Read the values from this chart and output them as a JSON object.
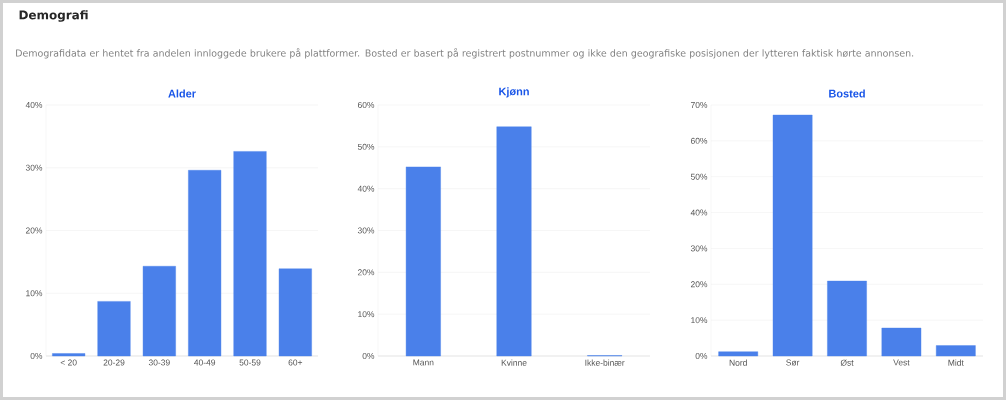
{
  "chart_data": [
    {
      "type": "bar",
      "title": "Alder",
      "annotations": [
        "Demografi",
        "Demografidata er hentet fra andelen innloggede brukere på plattformer. Bosted er basert på registrert postnummer og ikke den geografiske posisjonen der lytteren faktisk hørte annonsen."
      ],
      "categories": [
        "< 20",
        "20-29",
        "30-39",
        "40-49",
        "50-59",
        "60+"
      ],
      "values": [
        0.4,
        8.7,
        14.3,
        29.6,
        32.6,
        13.9
      ],
      "color": "#4a80ea",
      "ylim": [
        0,
        40
      ],
      "yticks": [
        {
          "value": 0,
          "label": "0%"
        },
        {
          "value": 10,
          "label": "10%"
        },
        {
          "value": 20,
          "label": "20%"
        },
        {
          "value": 30,
          "label": "30%"
        },
        {
          "value": 40,
          "label": "40%"
        }
      ],
      "grid": "y"
    },
    {
      "type": "bar",
      "title": "Kjønn",
      "categories": [
        "Mann",
        "Kvinne",
        "Ikke-binær"
      ],
      "values": [
        45.2,
        54.8,
        0.1
      ],
      "color": "#4a80ea",
      "ylim": [
        0,
        60
      ],
      "yticks": [
        {
          "value": 0,
          "label": "0%"
        },
        {
          "value": 10,
          "label": "10%"
        },
        {
          "value": 20,
          "label": "20%"
        },
        {
          "value": 30,
          "label": "30%"
        },
        {
          "value": 40,
          "label": "40%"
        },
        {
          "value": 50,
          "label": "50%"
        },
        {
          "value": 60,
          "label": "60%"
        }
      ],
      "grid": "y"
    },
    {
      "type": "bar",
      "title": "Bosted",
      "categories": [
        "Nord",
        "Sør",
        "Øst",
        "Vest",
        "Midt"
      ],
      "values": [
        1.2,
        67.2,
        20.9,
        7.8,
        2.9
      ],
      "color": "#4a80ea",
      "ylim": [
        0,
        70
      ],
      "yticks": [
        {
          "value": 0,
          "label": "0%"
        },
        {
          "value": 10,
          "label": "10%"
        },
        {
          "value": 20,
          "label": "20%"
        },
        {
          "value": 30,
          "label": "30%"
        },
        {
          "value": 40,
          "label": "40%"
        },
        {
          "value": 50,
          "label": "50%"
        },
        {
          "value": 60,
          "label": "60%"
        },
        {
          "value": 70,
          "label": "70%"
        }
      ],
      "grid": "y"
    }
  ]
}
